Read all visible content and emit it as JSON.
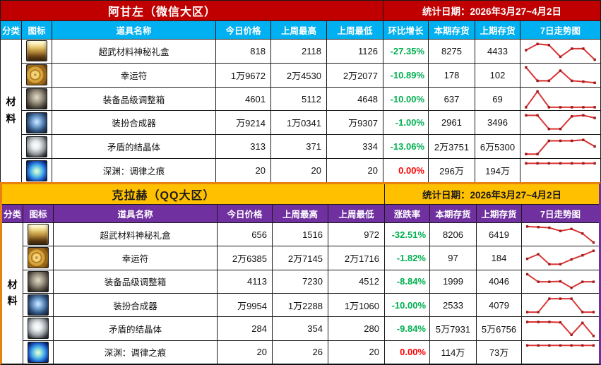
{
  "palette": {
    "percent_green": "#00B050",
    "percent_red": "#FF0000",
    "trend_line": "#D93535",
    "trend_marker": "#A01818"
  },
  "sections": [
    {
      "title": "阿甘左（微信大区）",
      "date_label": "统计日期：2026年3月27~4月2日",
      "category_label": "材料",
      "theme": {
        "band_bg": "#C00000",
        "band_fg": "#FFFFFF",
        "header_bg": "#00B0F0",
        "header_fg": "#FFFFFF",
        "border_top": "#1a1a1a",
        "border_left": "#1a1a1a",
        "border_right": "#1a1a1a"
      },
      "columns": [
        "分类",
        "图标",
        "道具名称",
        "今日价格",
        "上周最高",
        "上周最低",
        "环比增长",
        "本期存货",
        "上期存货",
        "7日走势图"
      ],
      "rows": [
        {
          "name": "超武材料神秘礼盒",
          "icon": "golden-chest-icon",
          "today": "818",
          "week_high": "2118",
          "week_low": "1126",
          "change": "-27.35%",
          "change_color": "green",
          "stock_now": "8275",
          "stock_prev": "4433",
          "trend": [
            0.55,
            0.85,
            0.8,
            0.22,
            0.62,
            0.62,
            0.08
          ]
        },
        {
          "name": "幸运符",
          "icon": "gold-scroll-icon",
          "today": "1万9672",
          "week_high": "2万4530",
          "week_low": "2万2077",
          "change": "-10.89%",
          "change_color": "green",
          "stock_now": "178",
          "stock_prev": "102",
          "trend": [
            0.88,
            0.22,
            0.22,
            0.72,
            0.22,
            0.18,
            0.12
          ]
        },
        {
          "name": "装备品级调整箱",
          "icon": "steel-cube-icon",
          "today": "4601",
          "week_high": "5112",
          "week_low": "4648",
          "change": "-10.00%",
          "change_color": "green",
          "stock_now": "637",
          "stock_prev": "69",
          "trend": [
            0.1,
            0.88,
            0.1,
            0.1,
            0.1,
            0.1,
            0.1
          ]
        },
        {
          "name": "装扮合成器",
          "icon": "blue-cube-icon",
          "today": "万9214",
          "week_high": "1万0341",
          "week_low": "万9307",
          "change": "-1.00%",
          "change_color": "green",
          "stock_now": "2961",
          "stock_prev": "3496",
          "trend": [
            0.85,
            0.85,
            0.18,
            0.18,
            0.8,
            0.85,
            0.72
          ]
        },
        {
          "name": "矛盾的结晶体",
          "icon": "white-crystal-icon",
          "today": "313",
          "week_high": "371",
          "week_low": "334",
          "change": "-13.06%",
          "change_color": "green",
          "stock_now": "2万3751",
          "stock_prev": "6万5300",
          "trend": [
            0.12,
            0.12,
            0.78,
            0.78,
            0.78,
            0.82,
            0.5
          ]
        },
        {
          "name": "深渊：调律之痕",
          "icon": "blue-orb-icon",
          "today": "20",
          "week_high": "20",
          "week_low": "20",
          "change": "0.00%",
          "change_color": "red",
          "stock_now": "296万",
          "stock_prev": "194万",
          "trend": [
            0.85,
            0.85,
            0.85,
            0.85,
            0.85,
            0.85,
            0.85
          ]
        }
      ]
    },
    {
      "title": "克拉赫（QQ大区）",
      "date_label": "统计日期：2026年3月27~4月2日",
      "category_label": "材料",
      "theme": {
        "band_bg": "#FFC000",
        "band_fg": "#1a1a1a",
        "header_bg": "#7030A0",
        "header_fg": "#FFFFFF",
        "border_top": "#E8820E",
        "border_left": "#E8820E",
        "border_right": "#7030A0"
      },
      "columns": [
        "分类",
        "图标",
        "道具名称",
        "今日价格",
        "上周最高",
        "上周最低",
        "涨跌率",
        "本期存货",
        "上期存货",
        "7日走势图"
      ],
      "rows": [
        {
          "name": "超武材料神秘礼盒",
          "icon": "golden-chest-icon",
          "today": "656",
          "week_high": "1516",
          "week_low": "972",
          "change": "-32.51%",
          "change_color": "green",
          "stock_now": "8206",
          "stock_prev": "6419",
          "trend": [
            0.9,
            0.87,
            0.84,
            0.68,
            0.78,
            0.55,
            0.1
          ]
        },
        {
          "name": "幸运符",
          "icon": "gold-scroll-icon",
          "today": "2万6385",
          "week_high": "2万7145",
          "week_low": "2万1716",
          "change": "-1.82%",
          "change_color": "green",
          "stock_now": "97",
          "stock_prev": "184",
          "trend": [
            0.45,
            0.68,
            0.18,
            0.18,
            0.42,
            0.62,
            0.85
          ]
        },
        {
          "name": "装备品级调整箱",
          "icon": "steel-cube-icon",
          "today": "4113",
          "week_high": "7230",
          "week_low": "4512",
          "change": "-8.84%",
          "change_color": "green",
          "stock_now": "1999",
          "stock_prev": "4046",
          "trend": [
            0.88,
            0.5,
            0.5,
            0.52,
            0.2,
            0.5,
            0.5
          ]
        },
        {
          "name": "装扮合成器",
          "icon": "blue-cube-icon",
          "today": "万9954",
          "week_high": "1万2288",
          "week_low": "1万1060",
          "change": "-10.00%",
          "change_color": "green",
          "stock_now": "2533",
          "stock_prev": "4079",
          "trend": [
            0.15,
            0.15,
            0.82,
            0.82,
            0.82,
            0.15,
            0.15
          ]
        },
        {
          "name": "矛盾的结晶体",
          "icon": "white-crystal-icon",
          "today": "284",
          "week_high": "354",
          "week_low": "280",
          "change": "-9.84%",
          "change_color": "green",
          "stock_now": "5万7931",
          "stock_prev": "5万6756",
          "trend": [
            0.82,
            0.82,
            0.82,
            0.8,
            0.18,
            0.78,
            0.12
          ]
        },
        {
          "name": "深渊：调律之痕",
          "icon": "blue-orb-icon",
          "today": "20",
          "week_high": "26",
          "week_low": "20",
          "change": "0.00%",
          "change_color": "red",
          "stock_now": "114万",
          "stock_prev": "73万",
          "trend": [
            0.85,
            0.85,
            0.85,
            0.85,
            0.85,
            0.85,
            0.85
          ]
        }
      ]
    }
  ]
}
